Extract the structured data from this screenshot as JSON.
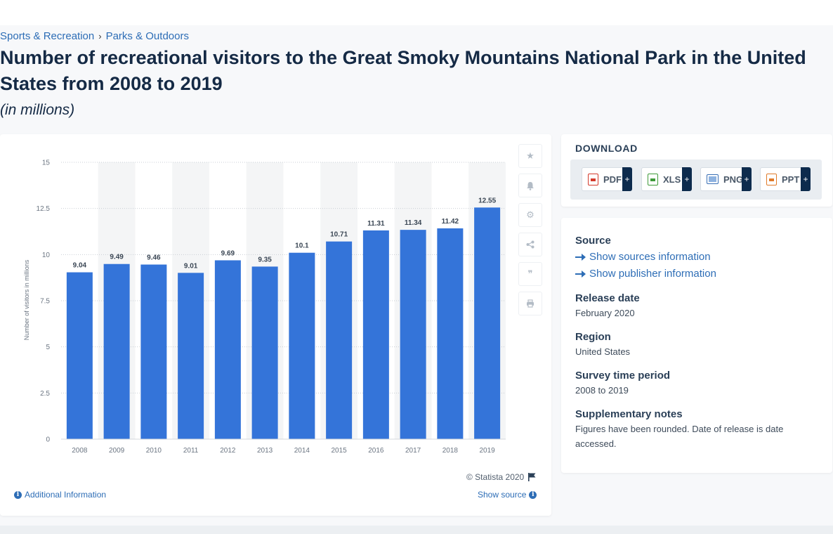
{
  "breadcrumb": {
    "items": [
      "Sports & Recreation",
      "Parks & Outdoors"
    ],
    "separator": "›"
  },
  "page": {
    "title": "Number of recreational visitors to the Great Smoky Mountains National Park in the United States from 2008 to 2019",
    "subtitle": "(in millions)"
  },
  "chart_data": {
    "type": "bar",
    "categories": [
      "2008",
      "2009",
      "2010",
      "2011",
      "2012",
      "2013",
      "2014",
      "2015",
      "2016",
      "2017",
      "2018",
      "2019"
    ],
    "values": [
      9.04,
      9.49,
      9.46,
      9.01,
      9.69,
      9.35,
      10.1,
      10.71,
      11.31,
      11.34,
      11.42,
      12.55
    ],
    "value_labels": [
      "9.04",
      "9.49",
      "9.46",
      "9.01",
      "9.69",
      "9.35",
      "10.1",
      "10.71",
      "11.31",
      "11.34",
      "11.42",
      "12.55"
    ],
    "ylabel": "Number of visitors in millions",
    "xlabel": "",
    "ylim": [
      0,
      15
    ],
    "yticks": [
      "0",
      "2.5",
      "5",
      "7.5",
      "10",
      "12.5",
      "15"
    ],
    "ytick_values": [
      0,
      2.5,
      5,
      7.5,
      10,
      12.5,
      15
    ],
    "grid": true,
    "bar_color": "#3474d9",
    "band_color": "#f4f5f6"
  },
  "chart_footer": {
    "copyright": "© Statista 2020",
    "additional_info": "Additional Information",
    "show_source": "Show source"
  },
  "tools": [
    {
      "name": "favorite-icon",
      "glyph": "★"
    },
    {
      "name": "bell-icon",
      "glyph": "🔔"
    },
    {
      "name": "settings-icon",
      "glyph": "⚙"
    },
    {
      "name": "share-icon",
      "glyph": "⋖"
    },
    {
      "name": "cite-icon",
      "glyph": "❞"
    },
    {
      "name": "print-icon",
      "glyph": "⎙"
    }
  ],
  "download": {
    "heading": "DOWNLOAD",
    "buttons": [
      {
        "label": "PDF",
        "color": "#d33a2c"
      },
      {
        "label": "XLS",
        "color": "#3f9a3a"
      },
      {
        "label": "PNG",
        "color": "#3a6fb5"
      },
      {
        "label": "PPT",
        "color": "#e07b2a"
      }
    ],
    "plus": "+"
  },
  "source": {
    "heading": "Source",
    "show_sources": "Show sources information",
    "show_publisher": "Show publisher information",
    "release_heading": "Release date",
    "release_value": "February 2020",
    "region_heading": "Region",
    "region_value": "United States",
    "survey_heading": "Survey time period",
    "survey_value": "2008 to 2019",
    "notes_heading": "Supplementary notes",
    "notes_value": "Figures have been rounded. Date of release is date accessed."
  },
  "colors": {
    "accent": "#2d6db6",
    "title": "#152a45",
    "navy": "#0d2b4d"
  }
}
